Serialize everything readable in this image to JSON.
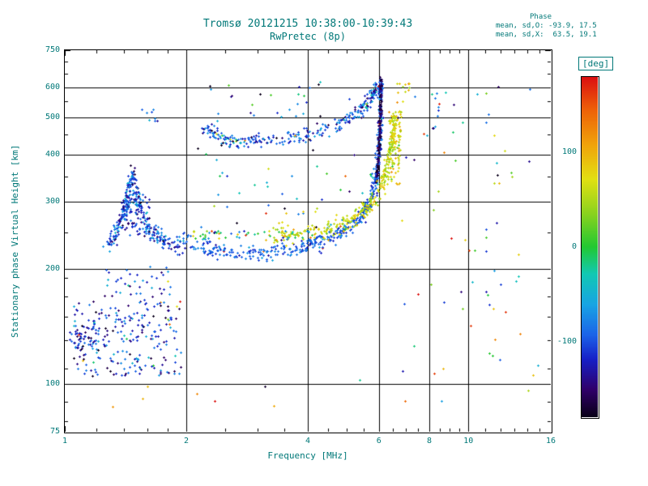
{
  "chart_data": {
    "type": "scatter",
    "title": "Tromsø 20121215 10:38:00-10:39:43",
    "subtitle": "RwPretec (8p)",
    "stats": {
      "header": "Phase",
      "line_o": "mean, sd,O: -93.9, 17.5",
      "line_x": "mean, sd,X:  63.5, 19.1"
    },
    "xlabel": "Frequency [MHz]",
    "ylabel": "Stationary phase Virtual Height [km]",
    "x_scale": "log",
    "y_scale": "log",
    "xlim": [
      1,
      16
    ],
    "ylim": [
      75,
      750
    ],
    "x_ticks": [
      1,
      2,
      4,
      6,
      8,
      10,
      16
    ],
    "y_ticks": [
      75,
      100,
      200,
      300,
      400,
      500,
      600,
      750
    ],
    "x_minor": [
      1.2,
      1.4,
      1.6,
      1.8,
      2.5,
      3,
      3.5,
      4.5,
      5,
      5.5,
      6.5,
      7,
      7.5,
      8.5,
      9,
      9.5,
      11,
      12,
      13,
      14,
      15
    ],
    "y_minor": [
      80,
      90,
      110,
      130,
      150,
      170,
      190,
      250,
      350,
      450,
      550,
      650,
      700
    ],
    "grid_x": [
      2,
      4,
      6,
      8,
      10
    ],
    "grid_y": [
      100,
      200,
      300,
      400,
      500,
      600
    ],
    "grid": true,
    "legend": false,
    "colorbar": {
      "label": "[deg]",
      "ticks": [
        100,
        0,
        -100
      ],
      "range": [
        -180,
        180
      ]
    },
    "colormap": [
      [
        0.0,
        "#0a0018"
      ],
      [
        0.08,
        "#30006a"
      ],
      [
        0.17,
        "#1620c8"
      ],
      [
        0.24,
        "#1b63e8"
      ],
      [
        0.33,
        "#17a4e4"
      ],
      [
        0.42,
        "#12c8b4"
      ],
      [
        0.5,
        "#22c832"
      ],
      [
        0.6,
        "#8cd21e"
      ],
      [
        0.7,
        "#e2e012"
      ],
      [
        0.8,
        "#f0a40a"
      ],
      [
        0.9,
        "#ee6408"
      ],
      [
        1.0,
        "#dc1010"
      ]
    ],
    "colors": {
      "text": "#007878",
      "frame": "#000000",
      "background": "#ffffff"
    },
    "seed": 42,
    "traces": [
      {
        "name": "E-cusp-rise",
        "kind": "curve",
        "pts": [
          [
            1.27,
            230
          ],
          [
            1.33,
            248
          ],
          [
            1.38,
            270
          ],
          [
            1.42,
            298
          ],
          [
            1.45,
            330
          ],
          [
            1.47,
            355
          ]
        ],
        "n": 150,
        "jf": 0.004,
        "jh": 0.012,
        "phase": [
          -100,
          30
        ]
      },
      {
        "name": "E-cusp-fall",
        "kind": "curve",
        "pts": [
          [
            1.47,
            345
          ],
          [
            1.51,
            305
          ],
          [
            1.55,
            275
          ],
          [
            1.61,
            255
          ],
          [
            1.7,
            242
          ],
          [
            1.83,
            233
          ],
          [
            2.0,
            232
          ]
        ],
        "n": 160,
        "jf": 0.004,
        "jh": 0.012,
        "phase": [
          -105,
          28
        ]
      },
      {
        "name": "E-cusp-blob",
        "kind": "cloud",
        "f": [
          1.38,
          1.62
        ],
        "h": [
          245,
          315
        ],
        "n": 90,
        "phase": [
          -110,
          35
        ]
      },
      {
        "name": "O-trace",
        "kind": "curve",
        "pts": [
          [
            2.0,
            236
          ],
          [
            2.3,
            226
          ],
          [
            2.7,
            220
          ],
          [
            3.2,
            220
          ],
          [
            3.7,
            226
          ],
          [
            4.2,
            235
          ],
          [
            4.7,
            247
          ],
          [
            5.1,
            260
          ],
          [
            5.45,
            278
          ],
          [
            5.7,
            300
          ],
          [
            5.85,
            330
          ],
          [
            5.95,
            370
          ],
          [
            6.0,
            420
          ],
          [
            6.03,
            480
          ],
          [
            6.05,
            560
          ],
          [
            6.06,
            630
          ]
        ],
        "n": 520,
        "jf": 0.003,
        "jh": 0.01,
        "phase": [
          -94,
          17
        ],
        "outliers": 0.04
      },
      {
        "name": "O-trace-dark",
        "kind": "curve",
        "pts": [
          [
            5.9,
            340
          ],
          [
            5.97,
            390
          ],
          [
            6.01,
            440
          ],
          [
            6.04,
            500
          ],
          [
            6.06,
            570
          ],
          [
            6.07,
            635
          ]
        ],
        "n": 140,
        "jf": 0.0015,
        "jh": 0.008,
        "phase": [
          -160,
          12
        ]
      },
      {
        "name": "F-upper-branch",
        "kind": "curve",
        "pts": [
          [
            2.2,
            470
          ],
          [
            2.35,
            452
          ],
          [
            2.55,
            440
          ],
          [
            2.8,
            434
          ],
          [
            3.1,
            434
          ],
          [
            3.5,
            440
          ],
          [
            3.9,
            450
          ],
          [
            4.3,
            462
          ],
          [
            4.7,
            478
          ],
          [
            5.05,
            497
          ],
          [
            5.35,
            518
          ],
          [
            5.6,
            545
          ],
          [
            5.8,
            580
          ],
          [
            5.92,
            615
          ]
        ],
        "n": 300,
        "jf": 0.004,
        "jh": 0.01,
        "phase": [
          -100,
          30
        ],
        "outliers": 0.05
      },
      {
        "name": "X-trace",
        "kind": "curve",
        "pts": [
          [
            3.3,
            248
          ],
          [
            3.8,
            246
          ],
          [
            4.3,
            252
          ],
          [
            4.8,
            262
          ],
          [
            5.2,
            274
          ],
          [
            5.6,
            292
          ],
          [
            5.9,
            314
          ],
          [
            6.15,
            340
          ],
          [
            6.3,
            372
          ],
          [
            6.42,
            410
          ],
          [
            6.5,
            455
          ],
          [
            6.55,
            500
          ]
        ],
        "n": 330,
        "jf": 0.004,
        "jh": 0.012,
        "phase": [
          63,
          19
        ],
        "outliers": 0.04
      },
      {
        "name": "X-top-cluster",
        "kind": "cloud",
        "f": [
          6.3,
          6.8
        ],
        "h": [
          330,
          520
        ],
        "n": 90,
        "phase": [
          70,
          25
        ]
      },
      {
        "name": "topright-warm",
        "kind": "cloud",
        "f": [
          6.6,
          7.2
        ],
        "h": [
          540,
          630
        ],
        "n": 12,
        "phase": [
          80,
          40
        ]
      },
      {
        "name": "Es-cloud",
        "kind": "cloud",
        "f": [
          1.05,
          1.95
        ],
        "h": [
          105,
          165
        ],
        "n": 230,
        "phase": [
          -110,
          38
        ],
        "outliers": 0.07
      },
      {
        "name": "Es-upper-sparse",
        "kind": "cloud",
        "f": [
          1.25,
          1.85
        ],
        "h": [
          165,
          205
        ],
        "n": 40,
        "phase": [
          -105,
          40
        ],
        "outliers": 0.05
      },
      {
        "name": "left-edge-cluster",
        "kind": "cloud",
        "f": [
          1.02,
          1.2
        ],
        "h": [
          118,
          145
        ],
        "n": 50,
        "phase": [
          -115,
          30
        ]
      },
      {
        "name": "left-high-cluster",
        "kind": "cloud",
        "f": [
          1.55,
          1.7
        ],
        "h": [
          490,
          525
        ],
        "n": 8,
        "phase": [
          -100,
          30
        ]
      },
      {
        "name": "mid-sparse",
        "kind": "cloud",
        "f": [
          2.1,
          5.8
        ],
        "h": [
          250,
          420
        ],
        "n": 45,
        "phase": [
          -60,
          80
        ],
        "outliers": 0.3
      },
      {
        "name": "high-sparse",
        "kind": "cloud",
        "f": [
          2.2,
          5.5
        ],
        "h": [
          480,
          640
        ],
        "n": 30,
        "phase": [
          -90,
          60
        ],
        "outliers": 0.2
      },
      {
        "name": "right-sparse",
        "kind": "cloud",
        "f": [
          6.8,
          15.5
        ],
        "h": [
          90,
          640
        ],
        "n": 55,
        "phase": [
          0,
          100
        ],
        "outliers": 0.5
      },
      {
        "name": "col-11",
        "kind": "cloud",
        "f": [
          11.0,
          12.0
        ],
        "h": [
          140,
          630
        ],
        "n": 16,
        "phase": [
          -40,
          90
        ],
        "outliers": 0.3
      },
      {
        "name": "col-8",
        "kind": "cloud",
        "f": [
          8.0,
          8.5
        ],
        "h": [
          460,
          630
        ],
        "n": 8,
        "phase": [
          -90,
          40
        ]
      },
      {
        "name": "low-row-warm",
        "kind": "cloud",
        "f": [
          2.0,
          4.2
        ],
        "h": [
          238,
          252
        ],
        "n": 60,
        "phase": [
          20,
          80
        ],
        "outliers": 0.2
      },
      {
        "name": "bottom-sparse",
        "kind": "cloud",
        "f": [
          1.3,
          6.2
        ],
        "h": [
          85,
          105
        ],
        "n": 8,
        "phase": [
          0,
          0
        ],
        "outliers": 1
      }
    ]
  }
}
